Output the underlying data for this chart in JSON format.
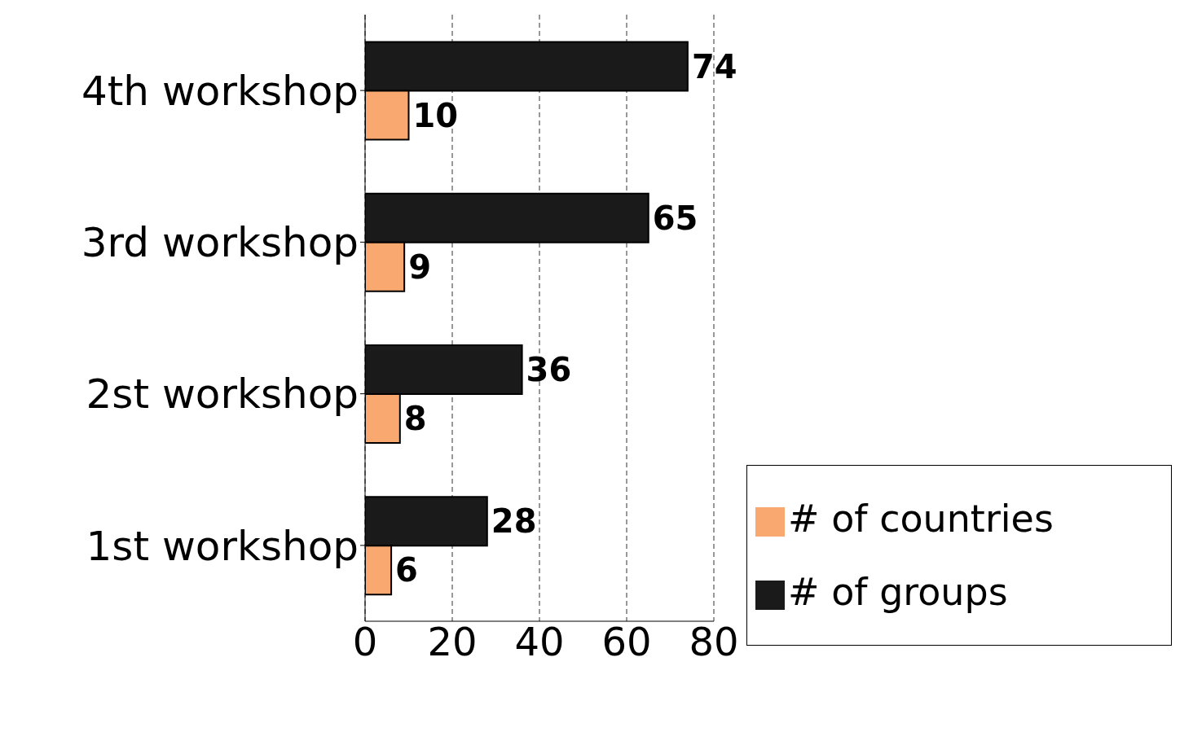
{
  "chart_data": {
    "type": "bar",
    "orientation": "horizontal",
    "categories": [
      "4th workshop",
      "3rd workshop",
      "2st workshop",
      "1st workshop"
    ],
    "series": [
      {
        "name": "# of groups",
        "color": "#1a1a1a",
        "values": [
          74,
          65,
          36,
          28
        ]
      },
      {
        "name": "# of countries",
        "color": "#f9a870",
        "values": [
          10,
          9,
          8,
          6
        ]
      }
    ],
    "xlim": [
      0,
      80
    ],
    "xticks": [
      0,
      20,
      40,
      60,
      80
    ],
    "grid": "x",
    "legend": "bottom right",
    "data_labels": true
  }
}
